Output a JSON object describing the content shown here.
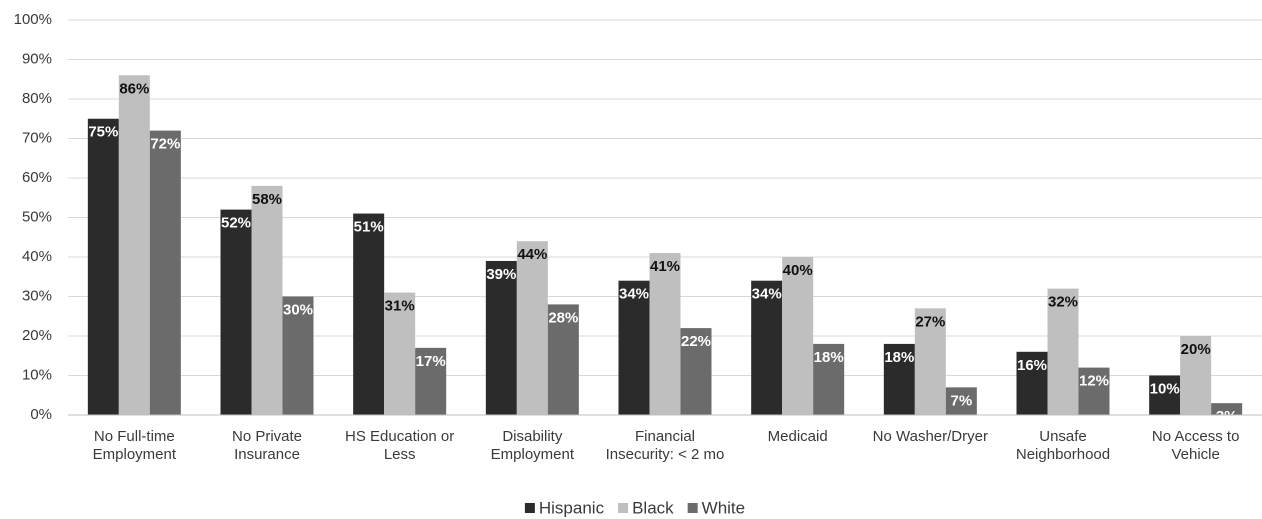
{
  "chart_data": {
    "type": "bar",
    "categories": [
      "No Full-time Employment",
      "No Private Insurance",
      "HS Education or Less",
      "Disability Employment",
      "Financial Insecurity: < 2 mo",
      "Medicaid",
      "No Washer/Dryer",
      "Unsafe Neighborhood",
      "No Access to Vehicle"
    ],
    "series": [
      {
        "name": "Hispanic",
        "color": "#2b2b2b",
        "values": [
          75,
          52,
          51,
          39,
          34,
          34,
          18,
          16,
          10
        ],
        "value_labels": [
          "75%",
          "52%",
          "51%",
          "39%",
          "34%",
          "34%",
          "18%",
          "16%",
          "10%"
        ]
      },
      {
        "name": "Black",
        "color": "#bfbfbf",
        "values": [
          86,
          58,
          31,
          44,
          41,
          40,
          27,
          32,
          20
        ],
        "value_labels": [
          "86%",
          "58%",
          "31%",
          "44%",
          "41%",
          "40%",
          "27%",
          "32%",
          "20%"
        ]
      },
      {
        "name": "White",
        "color": "#6b6b6b",
        "values": [
          72,
          30,
          17,
          28,
          22,
          18,
          7,
          12,
          3
        ],
        "value_labels": [
          "72%",
          "30%",
          "17%",
          "28%",
          "22%",
          "18%",
          "7%",
          "12%",
          "3%"
        ]
      }
    ],
    "ylim": [
      0,
      100
    ],
    "yticks": [
      {
        "value": 0,
        "label": "0%"
      },
      {
        "value": 10,
        "label": "10%"
      },
      {
        "value": 20,
        "label": "20%"
      },
      {
        "value": 30,
        "label": "30%"
      },
      {
        "value": 40,
        "label": "40%"
      },
      {
        "value": 50,
        "label": "50%"
      },
      {
        "value": 60,
        "label": "60%"
      },
      {
        "value": 70,
        "label": "70%"
      },
      {
        "value": 80,
        "label": "80%"
      },
      {
        "value": 90,
        "label": "90%"
      },
      {
        "value": 100,
        "label": "100%"
      }
    ],
    "grid": true,
    "legend": "bottom"
  }
}
